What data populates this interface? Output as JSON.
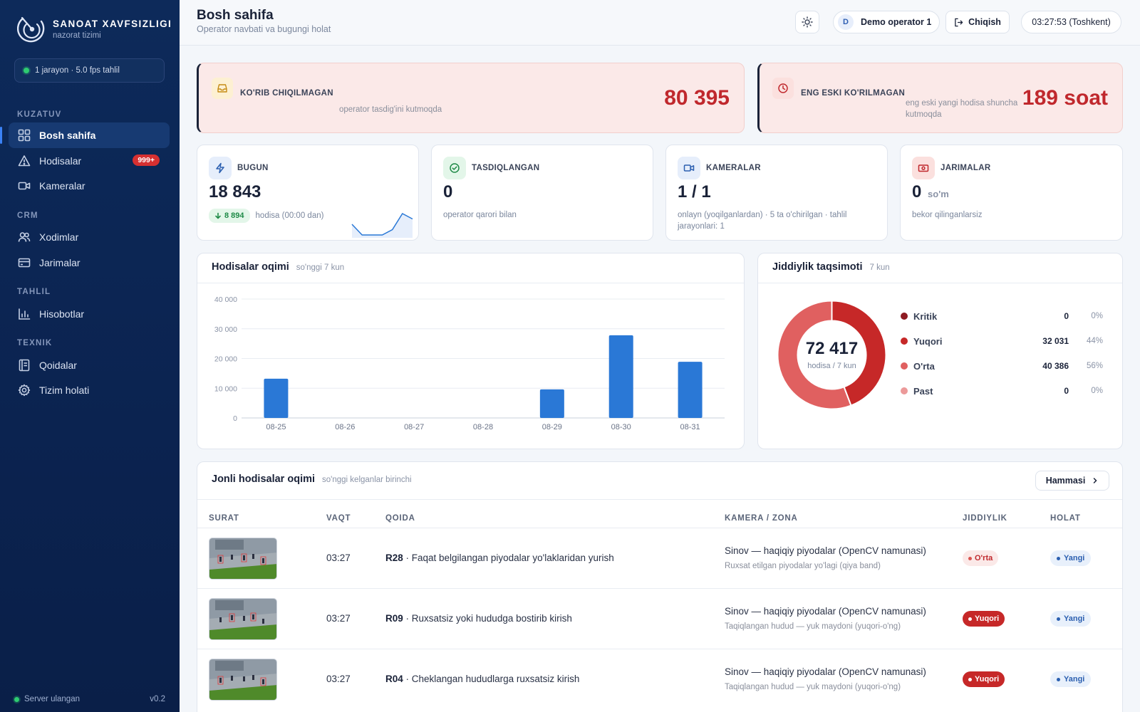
{
  "sidebar": {
    "brand_title": "SANOAT XAVFSIZLIGI",
    "brand_sub": "nazorat tizimi",
    "status": "1 jarayon · 5.0 fps tahlil",
    "sections": {
      "kuzatuv": "KUZATUV",
      "crm": "CRM",
      "tahlil": "TAHLIL",
      "texnik": "TEXNIK"
    },
    "items": {
      "home": "Bosh sahifa",
      "events": "Hodisalar",
      "events_badge": "999+",
      "cameras": "Kameralar",
      "staff": "Xodimlar",
      "fines": "Jarimalar",
      "reports": "Hisobotlar",
      "rules": "Qoidalar",
      "system": "Tizim holati"
    },
    "footer_status": "Server ulangan",
    "version": "v0.2"
  },
  "header": {
    "title": "Bosh sahifa",
    "subtitle": "Operator navbati va bugungi holat",
    "user_initial": "D",
    "user_name": "Demo operator 1",
    "logout": "Chiqish",
    "clock": "03:27:53 (Toshkent)"
  },
  "alerts": {
    "unreviewed": {
      "label": "KO'RIB CHIQILMAGAN",
      "sub": "operator tasdig'ini kutmoqda",
      "value": "80 395"
    },
    "oldest": {
      "label": "ENG ESKI KO'RILMAGAN",
      "sub": "eng eski yangi hodisa shuncha kutmoqda",
      "value": "189 soat"
    }
  },
  "stats": {
    "today": {
      "label": "BUGUN",
      "value": "18 843",
      "delta": "8 894",
      "sub": "hodisa (00:00 dan)",
      "spark": [
        3,
        1,
        1,
        1,
        2,
        5,
        4
      ]
    },
    "confirmed": {
      "label": "TASDIQLANGAN",
      "value": "0",
      "sub": "operator qarori bilan"
    },
    "cameras": {
      "label": "KAMERALAR",
      "value": "1 / 1",
      "sub": "onlayn (yoqilganlardan) · 5 ta o'chirilgan · tahlil jarayonlari: 1"
    },
    "fines": {
      "label": "JARIMALAR",
      "value": "0",
      "unit": "so'm",
      "sub": "bekor qilinganlarsiz"
    }
  },
  "flow": {
    "title": "Hodisalar oqimi",
    "subtitle": "so'nggi 7 kun"
  },
  "severity": {
    "title": "Jiddiylik taqsimoti",
    "subtitle": "7 kun",
    "total": "72 417",
    "total_label": "hodisa / 7 kun",
    "items": [
      {
        "name": "Kritik",
        "value": "0",
        "pct": "0%",
        "color": "#8e1b22"
      },
      {
        "name": "Yuqori",
        "value": "32 031",
        "pct": "44%",
        "color": "#c62828"
      },
      {
        "name": "O'rta",
        "value": "40 386",
        "pct": "56%",
        "color": "#e06060"
      },
      {
        "name": "Past",
        "value": "0",
        "pct": "0%",
        "color": "#ec9a9a"
      }
    ]
  },
  "chart_data": [
    {
      "type": "bar",
      "title": "Hodisalar oqimi",
      "categories": [
        "08-25",
        "08-26",
        "08-27",
        "08-28",
        "08-29",
        "08-30",
        "08-31"
      ],
      "values": [
        13200,
        0,
        0,
        0,
        9600,
        27800,
        18900
      ],
      "ylim": [
        0,
        40000
      ],
      "yticks": [
        "0",
        "10 000",
        "20 000",
        "30 000",
        "40 000"
      ],
      "grid": true,
      "color": "#2a78d6"
    },
    {
      "type": "pie",
      "title": "Jiddiylik taqsimoti",
      "labels": [
        "Kritik",
        "Yuqori",
        "O'rta",
        "Past"
      ],
      "values": [
        0,
        32031,
        40386,
        0
      ],
      "colors": [
        "#8e1b22",
        "#c62828",
        "#e06060",
        "#ec9a9a"
      ]
    }
  ],
  "live": {
    "title": "Jonli hodisalar oqimi",
    "subtitle": "so'nggi kelganlar birinchi",
    "all_button": "Hammasi",
    "columns": [
      "SURAT",
      "VAQT",
      "QOIDA",
      "KAMERA / ZONA",
      "JIDDIYLIK",
      "HOLAT"
    ],
    "rows": [
      {
        "time": "03:27",
        "code": "R28",
        "rule": " · Faqat belgilangan piyodalar yo'laklaridan yurish",
        "camera": "Sinov — haqiqiy piyodalar (OpenCV namunasi)",
        "zone": "Ruxsat etilgan piyodalar yo'lagi (qiya band)",
        "severity": "O'rta",
        "status": "Yangi"
      },
      {
        "time": "03:27",
        "code": "R09",
        "rule": " · Ruxsatsiz yoki hududga bostirib kirish",
        "camera": "Sinov — haqiqiy piyodalar (OpenCV namunasi)",
        "zone": "Taqiqlangan hudud — yuk maydoni (yuqori-o'ng)",
        "severity": "Yuqori",
        "status": "Yangi"
      },
      {
        "time": "03:27",
        "code": "R04",
        "rule": " · Cheklangan hududlarga ruxsatsiz kirish",
        "camera": "Sinov — haqiqiy piyodalar (OpenCV namunasi)",
        "zone": "Taqiqlangan hudud — yuk maydoni (yuqori-o'ng)",
        "severity": "Yuqori",
        "status": "Yangi"
      }
    ]
  }
}
